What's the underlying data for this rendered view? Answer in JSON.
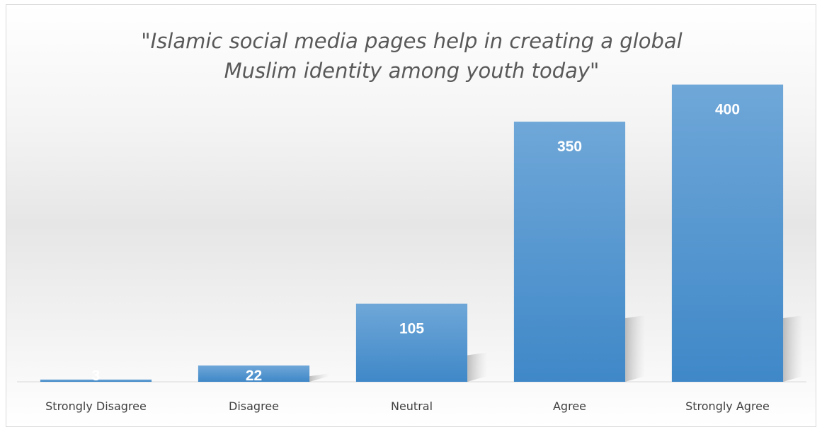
{
  "chart_data": {
    "type": "bar",
    "title": "\"Islamic social media pages help in creating a global Muslim identity among youth today\"",
    "title_lines": [
      "\"Islamic social media pages help in creating a global",
      "Muslim identity among youth today\""
    ],
    "categories": [
      "Strongly Disagree",
      "Disagree",
      "Neutral",
      "Agree",
      "Strongly Agree"
    ],
    "values": [
      3,
      22,
      105,
      350,
      400
    ],
    "data_labels": [
      "3",
      "22",
      "105",
      "350",
      "400"
    ],
    "xlabel": "",
    "ylabel": "",
    "ylim": [
      0,
      450
    ],
    "grid": false,
    "legend": "none",
    "bar_color": "#5b9bd5"
  }
}
